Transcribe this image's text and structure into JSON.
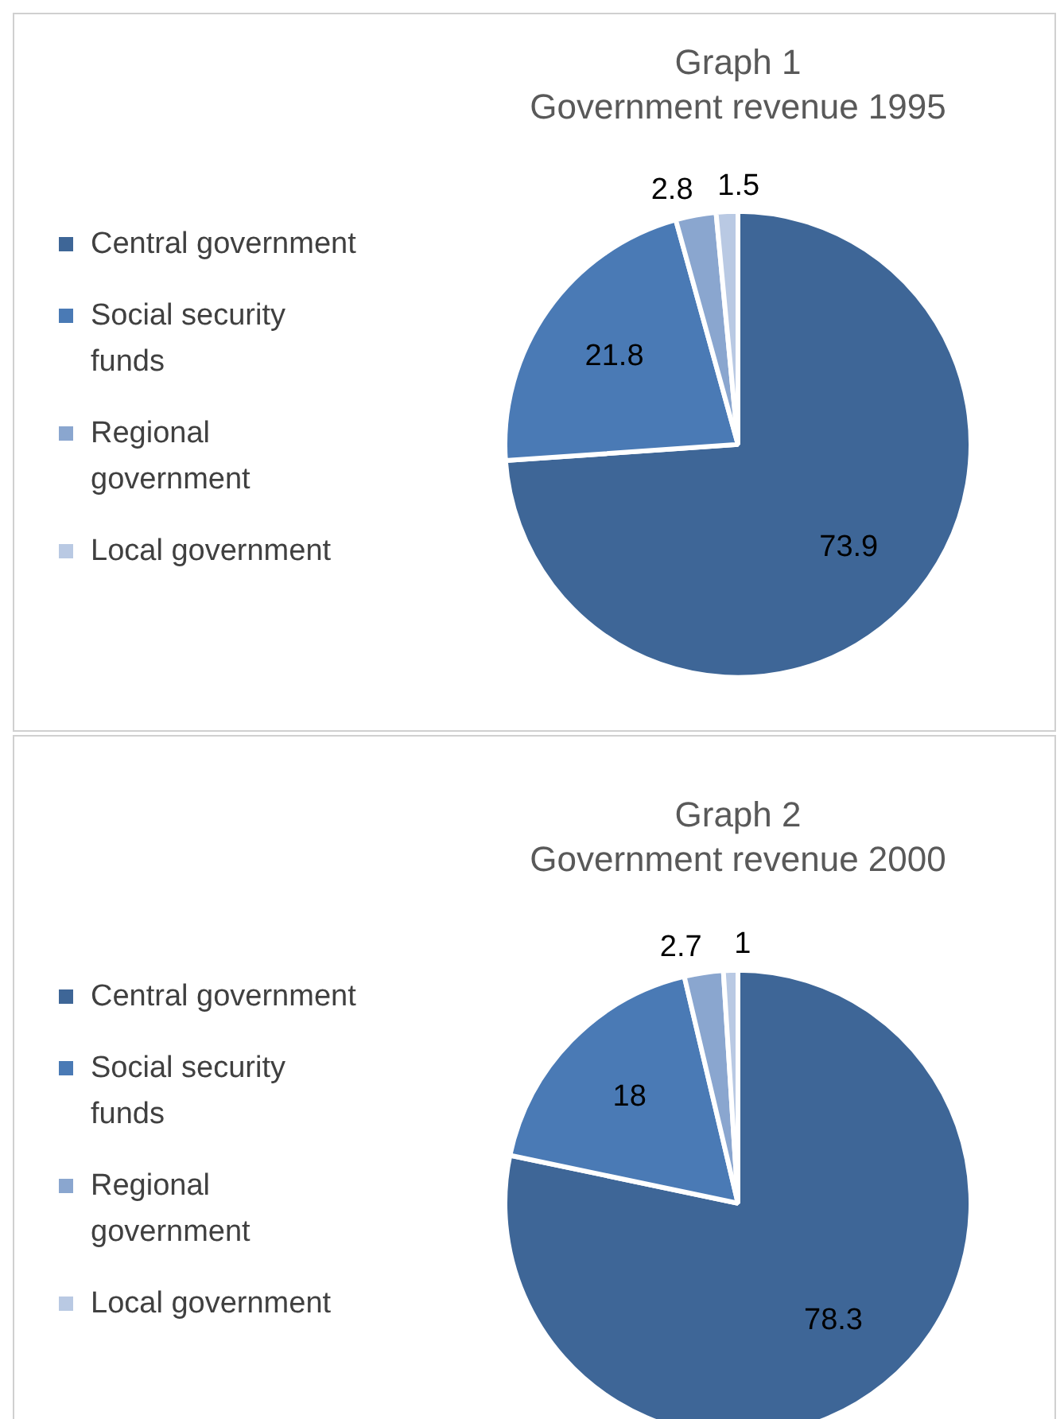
{
  "chart_data": [
    {
      "type": "pie",
      "title": "Graph 1",
      "subtitle": "Government revenue 1995",
      "categories": [
        "Central government",
        "Social security funds",
        "Regional government",
        "Local government"
      ],
      "values": [
        73.9,
        21.8,
        2.8,
        1.5
      ],
      "colors": [
        "#3e6697",
        "#4a7ab5",
        "#8aa6cf",
        "#b9c9e3"
      ],
      "data_labels": true,
      "legend": "left"
    },
    {
      "type": "pie",
      "title": "Graph 2",
      "subtitle": "Government revenue 2000",
      "categories": [
        "Central government",
        "Social security funds",
        "Regional government",
        "Local government"
      ],
      "values": [
        78.3,
        18,
        2.7,
        1
      ],
      "colors": [
        "#3e6697",
        "#4a7ab5",
        "#8aa6cf",
        "#b9c9e3"
      ],
      "data_labels": true,
      "legend": "left"
    }
  ]
}
